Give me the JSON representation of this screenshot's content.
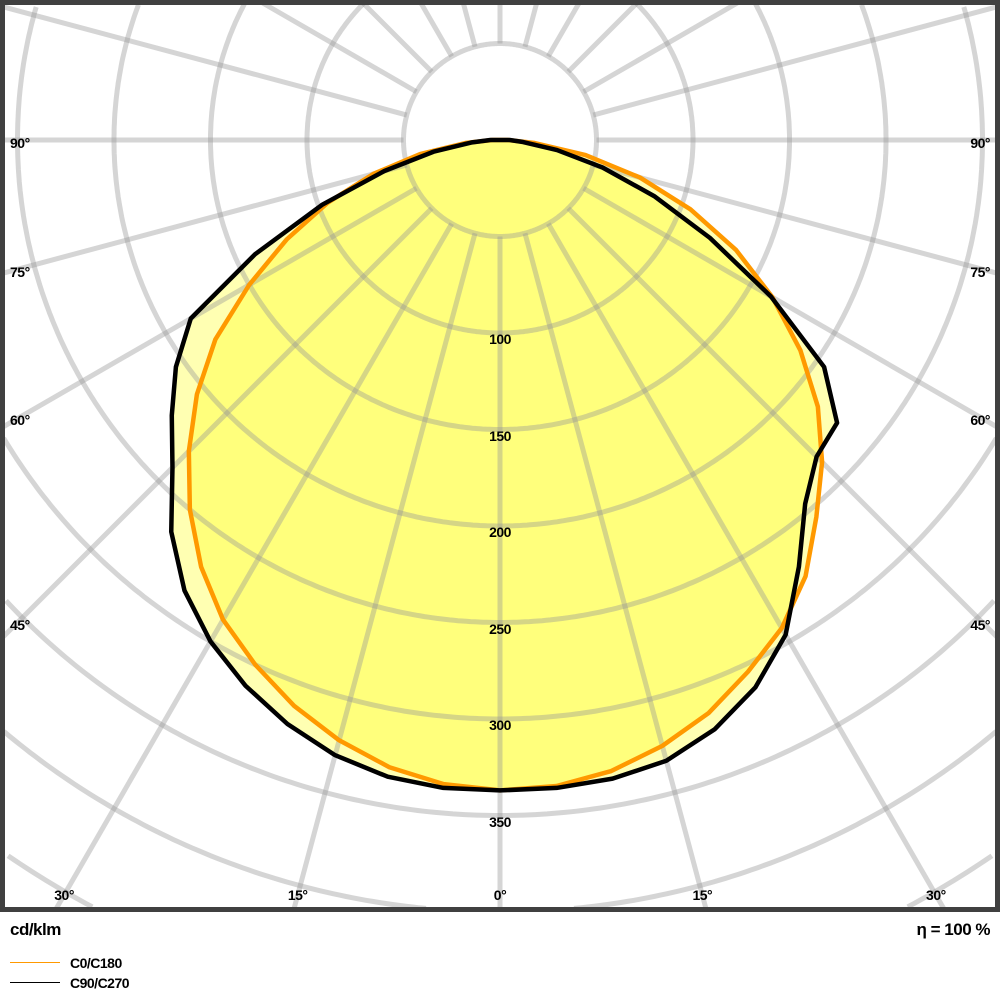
{
  "chart_data": {
    "type": "polar",
    "unit_label": "cd/klm",
    "efficiency_label": "η = 100 %",
    "radial_ticks": [
      100,
      150,
      200,
      250,
      300,
      350
    ],
    "radial_grid_step": 50,
    "angle_ticks": [
      "0°",
      "15°",
      "30°",
      "45°",
      "60°",
      "75°",
      "90°"
    ],
    "angle_grid_step_deg": 15,
    "angles": [
      -90,
      -85,
      -80,
      -75,
      -70,
      -65,
      -60,
      -55,
      -50,
      -45,
      -40,
      -35,
      -30,
      -25,
      -20,
      -15,
      -10,
      -5,
      0,
      5,
      10,
      15,
      20,
      25,
      30,
      35,
      40,
      45,
      50,
      55,
      60,
      65,
      70,
      75,
      80,
      85,
      90
    ],
    "series": [
      {
        "name": "C0/C180",
        "color": "#ff9900",
        "values": [
          4,
          18,
          42,
          68,
          95,
          122,
          150,
          180,
          205,
          228,
          250,
          270,
          287,
          300,
          312,
          322,
          330,
          335,
          337,
          336,
          332,
          325,
          316,
          304,
          292,
          276,
          255,
          236,
          215,
          190,
          163,
          135,
          105,
          75,
          45,
          18,
          4
        ]
      },
      {
        "name": "C90/C270",
        "color": "#000000",
        "values": [
          5,
          15,
          35,
          62,
          98,
          140,
          185,
          205,
          222,
          240,
          265,
          285,
          300,
          312,
          322,
          330,
          335,
          337,
          337,
          337,
          336,
          333,
          325,
          313,
          296,
          270,
          246,
          232,
          228,
          205,
          162,
          120,
          85,
          55,
          30,
          12,
          5
        ]
      }
    ],
    "fill_color": "#ffff00",
    "grid": true,
    "legend_placement": "bottom-left"
  }
}
